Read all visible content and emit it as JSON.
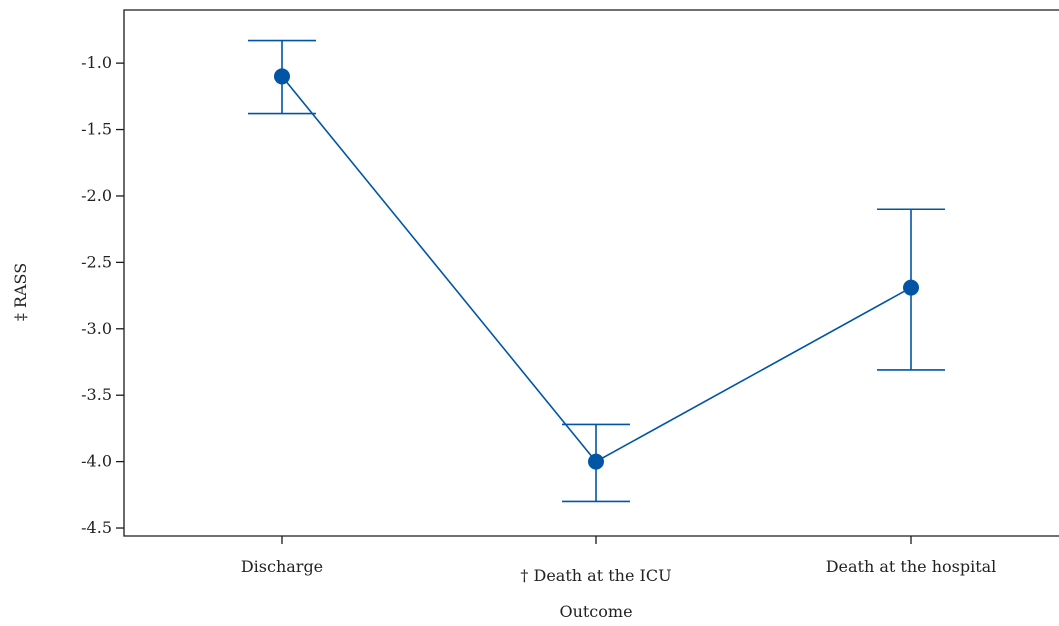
{
  "chart_data": {
    "type": "line",
    "title": "",
    "xlabel": "Outcome",
    "ylabel": "‡ RASS",
    "categories": [
      "Discharge",
      "† Death at the ICU",
      "Death at the hospital"
    ],
    "series": [
      {
        "values": [
          -1.1,
          -4.0,
          -2.69
        ],
        "ci_lower": [
          -1.38,
          -4.3,
          -3.31
        ],
        "ci_upper": [
          -0.83,
          -3.72,
          -2.1
        ]
      }
    ],
    "yticks": [
      "-1.0",
      "-1.5",
      "-2.0",
      "-2.5",
      "-3.0",
      "-3.5",
      "-4.0",
      "-4.5"
    ],
    "ylim": [
      -4.56,
      -0.6
    ],
    "grid": false,
    "colors": {
      "series": "#0055a4",
      "axis": "#1a1a1a",
      "text": "#222222"
    }
  }
}
